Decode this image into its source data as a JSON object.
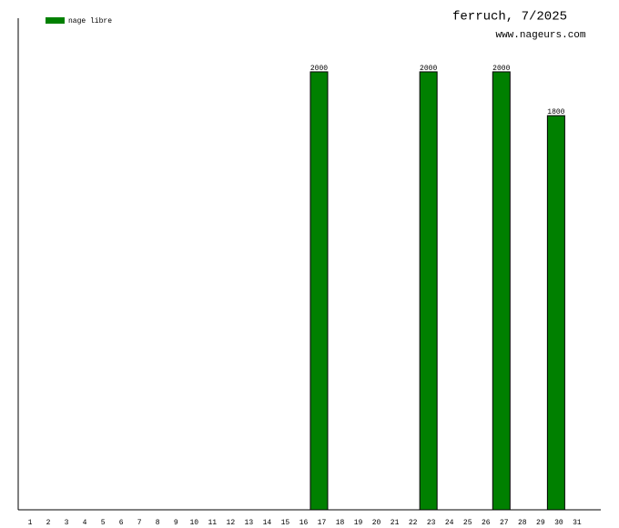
{
  "chart_data": {
    "type": "bar",
    "title": "ferruch, 7/2025",
    "subtitle": "www.nageurs.com",
    "categories": [
      "1",
      "2",
      "3",
      "4",
      "5",
      "6",
      "7",
      "8",
      "9",
      "10",
      "11",
      "12",
      "13",
      "14",
      "15",
      "16",
      "17",
      "18",
      "19",
      "20",
      "21",
      "22",
      "23",
      "24",
      "25",
      "26",
      "27",
      "28",
      "29",
      "30",
      "31"
    ],
    "series": [
      {
        "name": "nage libre",
        "color": "#008000",
        "values": [
          null,
          null,
          null,
          null,
          null,
          null,
          null,
          null,
          null,
          null,
          null,
          null,
          null,
          null,
          null,
          null,
          2000,
          null,
          null,
          null,
          null,
          null,
          2000,
          null,
          null,
          null,
          2000,
          null,
          null,
          1800,
          null
        ]
      }
    ],
    "ylim": [
      0,
      2245
    ]
  }
}
